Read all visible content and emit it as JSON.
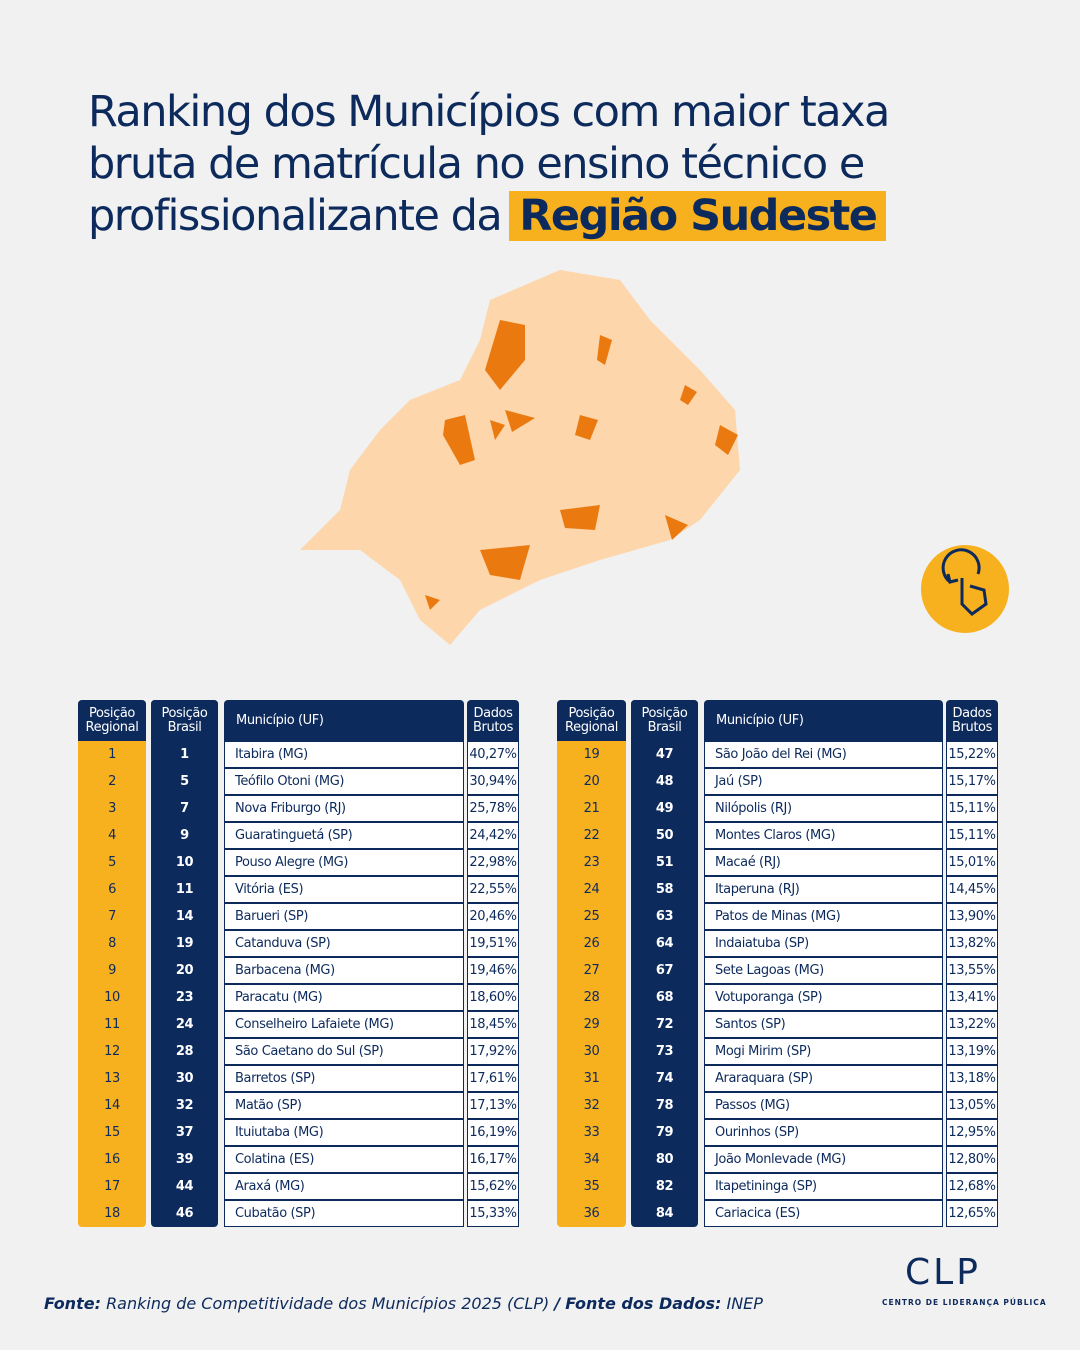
{
  "title": {
    "line1": "Ranking dos Municípios com maior taxa",
    "line2": "bruta de matrícula no ensino técnico e",
    "line3": "profissionalizante da",
    "highlight": "Região Sudeste"
  },
  "tables": [
    {
      "headers": [
        "Posição Regional",
        "Posição Brasil",
        "Município (UF)",
        "Dados Brutos"
      ],
      "rows": [
        [
          1,
          1,
          "Itabira (MG)",
          "40,27%"
        ],
        [
          2,
          5,
          "Teófilo Otoni (MG)",
          "30,94%"
        ],
        [
          3,
          7,
          "Nova Friburgo (RJ)",
          "25,78%"
        ],
        [
          4,
          9,
          "Guaratinguetá (SP)",
          "24,42%"
        ],
        [
          5,
          10,
          "Pouso Alegre (MG)",
          "22,98%"
        ],
        [
          6,
          11,
          "Vitória (ES)",
          "22,55%"
        ],
        [
          7,
          14,
          "Barueri (SP)",
          "20,46%"
        ],
        [
          8,
          19,
          "Catanduva (SP)",
          "19,51%"
        ],
        [
          9,
          20,
          "Barbacena (MG)",
          "19,46%"
        ],
        [
          10,
          23,
          "Paracatu (MG)",
          "18,60%"
        ],
        [
          11,
          24,
          "Conselheiro Lafaiete (MG)",
          "18,45%"
        ],
        [
          12,
          28,
          "São Caetano do Sul (SP)",
          "17,92%"
        ],
        [
          13,
          30,
          "Barretos (SP)",
          "17,61%"
        ],
        [
          14,
          32,
          "Matão (SP)",
          "17,13%"
        ],
        [
          15,
          37,
          "Ituiutaba (MG)",
          "16,19%"
        ],
        [
          16,
          39,
          "Colatina (ES)",
          "16,17%"
        ],
        [
          17,
          44,
          "Araxá (MG)",
          "15,62%"
        ],
        [
          18,
          46,
          "Cubatão (SP)",
          "15,33%"
        ]
      ]
    },
    {
      "headers": [
        "Posição Regional",
        "Posição Brasil",
        "Município (UF)",
        "Dados Brutos"
      ],
      "rows": [
        [
          19,
          47,
          "São João del Rei (MG)",
          "15,22%"
        ],
        [
          20,
          48,
          "Jaú (SP)",
          "15,17%"
        ],
        [
          21,
          49,
          "Nilópolis (RJ)",
          "15,11%"
        ],
        [
          22,
          50,
          "Montes Claros (MG)",
          "15,11%"
        ],
        [
          23,
          51,
          "Macaé (RJ)",
          "15,01%"
        ],
        [
          24,
          58,
          "Itaperuna (RJ)",
          "14,45%"
        ],
        [
          25,
          63,
          "Patos de Minas (MG)",
          "13,90%"
        ],
        [
          26,
          64,
          "Indaiatuba (SP)",
          "13,82%"
        ],
        [
          27,
          67,
          "Sete Lagoas (MG)",
          "13,55%"
        ],
        [
          28,
          68,
          "Votuporanga (SP)",
          "13,41%"
        ],
        [
          29,
          72,
          "Santos (SP)",
          "13,22%"
        ],
        [
          30,
          73,
          "Mogi Mirim (SP)",
          "13,19%"
        ],
        [
          31,
          74,
          "Araraquara (SP)",
          "13,18%"
        ],
        [
          32,
          78,
          "Passos (MG)",
          "13,05%"
        ],
        [
          33,
          79,
          "Ourinhos (SP)",
          "12,95%"
        ],
        [
          34,
          80,
          "João Monlevade (MG)",
          "12,80%"
        ],
        [
          35,
          82,
          "Itapetininga (SP)",
          "12,68%"
        ],
        [
          36,
          84,
          "Cariacica (ES)",
          "12,65%"
        ]
      ]
    }
  ],
  "footer": {
    "label1": "Fonte:",
    "source": "Ranking de Competitividade dos Municípios 2025 (CLP)",
    "separator": "/",
    "label2": "Fonte dos Dados:",
    "data_source": "INEP"
  },
  "logo": {
    "name": "CLP",
    "subtitle": "CENTRO DE LIDERANÇA PÚBLICA"
  }
}
